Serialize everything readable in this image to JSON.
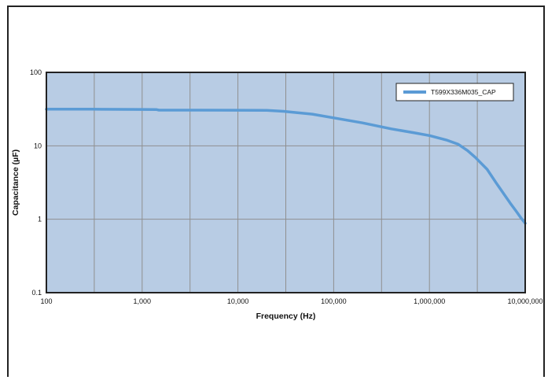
{
  "chart_data": {
    "type": "line",
    "title": "",
    "xlabel": "Frequency (Hz)",
    "ylabel": "Capacitance (µF)",
    "xscale": "log",
    "yscale": "log",
    "xlim": [
      100,
      10000000
    ],
    "ylim": [
      0.1,
      100
    ],
    "x_ticks": [
      100,
      1000,
      10000,
      100000,
      1000000,
      10000000
    ],
    "x_tick_labels": [
      "100",
      "1,000",
      "10,000",
      "100,000",
      "1,000,000",
      "10,000,000"
    ],
    "y_ticks": [
      0.1,
      1,
      10,
      100
    ],
    "y_tick_labels": [
      "0.1",
      "1",
      "10",
      "100"
    ],
    "grid": true,
    "legend_position": "top-right",
    "plot_background": "#b8cce4",
    "series": [
      {
        "name": "T599X336M035_CAP",
        "color": "#5b9bd5",
        "x": [
          100,
          300,
          1000,
          1400,
          1500,
          3000,
          10000,
          20000,
          30000,
          60000,
          100000,
          200000,
          400000,
          700000,
          1000000,
          1500000,
          2000000,
          2500000,
          3000000,
          4000000,
          5000000,
          6000000,
          7000000,
          8000000,
          9000000,
          10000000
        ],
        "y": [
          31.5,
          31.5,
          31.3,
          31.2,
          30.6,
          30.6,
          30.5,
          30.4,
          29.5,
          27,
          24,
          20.5,
          17,
          15,
          13.8,
          12,
          10.5,
          8.6,
          7,
          4.8,
          3.1,
          2.2,
          1.65,
          1.3,
          1.05,
          0.88
        ]
      }
    ]
  }
}
